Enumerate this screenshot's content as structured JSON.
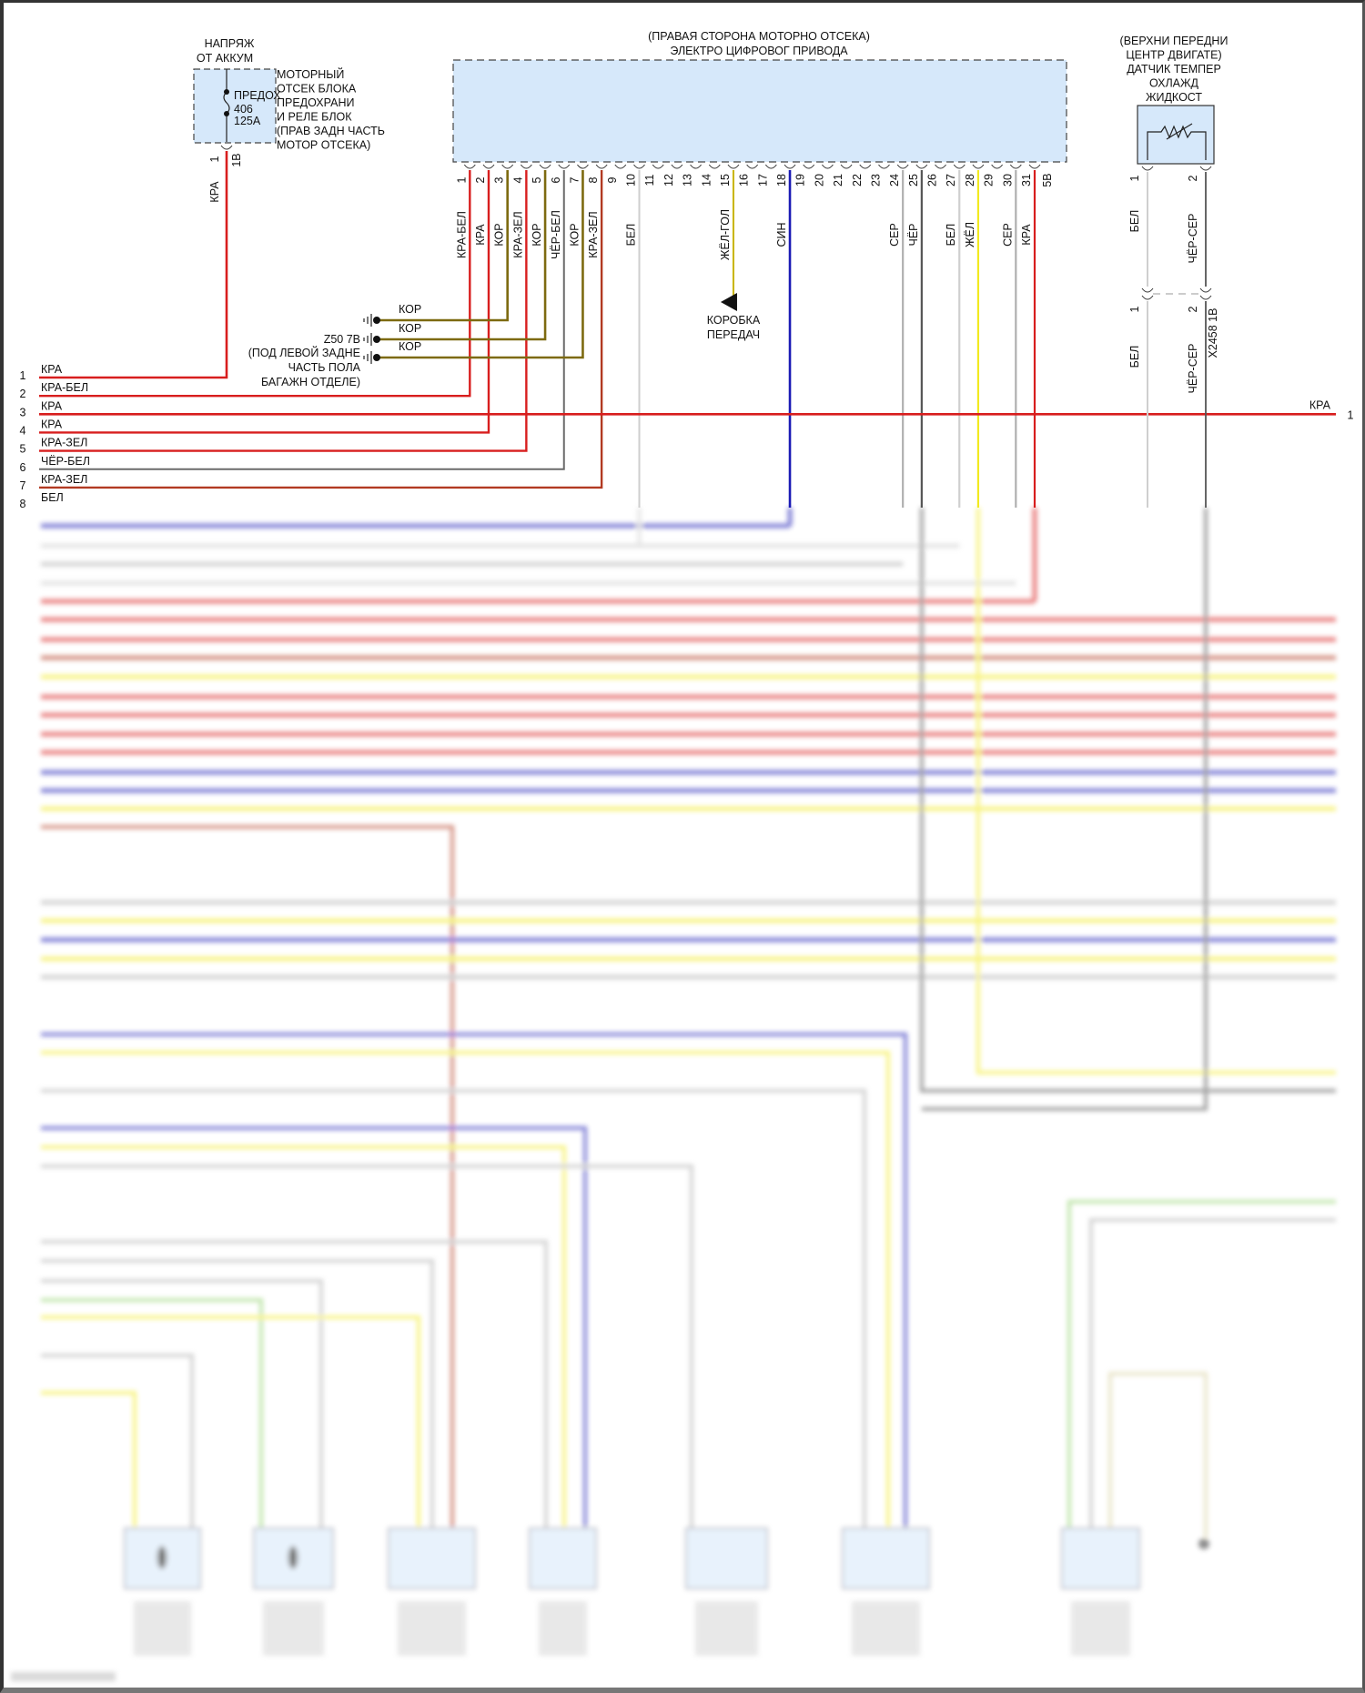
{
  "fuse_block": {
    "supply_label": [
      "НАПРЯЖ",
      "ОТ АККУМ"
    ],
    "fuse_label": [
      "ПРЕДОХ",
      "406",
      "125A"
    ],
    "location": [
      "МОТОРНЫЙ",
      "ОТСЕК БЛОКА",
      "ПРЕДОХРАНИ",
      "И РЕЛЕ БЛОК",
      "(ПРАВ ЗАДН ЧАСТЬ",
      "МОТОР ОТСЕКА)"
    ],
    "pin": "1",
    "connector": "1B",
    "wire_label": "КРА"
  },
  "ecu": {
    "title": [
      "(ПРАВАЯ СТОРОНА МОТОРНО ОТСЕКА)",
      "ЭЛЕКТРО ЦИФРОВОГ ПРИВОДА"
    ],
    "connector": "5B",
    "pins": [
      {
        "n": "1",
        "wire": "КРА-БЕЛ",
        "color": "red"
      },
      {
        "n": "2",
        "wire": "КРА",
        "color": "red"
      },
      {
        "n": "3",
        "wire": "КОР",
        "color": "olive"
      },
      {
        "n": "4",
        "wire": "КРА-ЗЕЛ",
        "color": "red"
      },
      {
        "n": "5",
        "wire": "КОР",
        "color": "olive"
      },
      {
        "n": "6",
        "wire": "ЧЁР-БЕЛ",
        "color": "gray"
      },
      {
        "n": "7",
        "wire": "КОР",
        "color": "olive"
      },
      {
        "n": "8",
        "wire": "КРА-ЗЕЛ",
        "color": "brownred"
      },
      {
        "n": "9",
        "wire": "",
        "color": ""
      },
      {
        "n": "10",
        "wire": "БЕЛ",
        "color": "light"
      },
      {
        "n": "11",
        "wire": "",
        "color": ""
      },
      {
        "n": "12",
        "wire": "",
        "color": ""
      },
      {
        "n": "13",
        "wire": "",
        "color": ""
      },
      {
        "n": "14",
        "wire": "",
        "color": ""
      },
      {
        "n": "15",
        "wire": "ЖЁЛ-ГОЛ",
        "color": "yellowdark"
      },
      {
        "n": "16",
        "wire": "",
        "color": ""
      },
      {
        "n": "17",
        "wire": "",
        "color": ""
      },
      {
        "n": "18",
        "wire": "СИН",
        "color": "blue"
      },
      {
        "n": "19",
        "wire": "",
        "color": ""
      },
      {
        "n": "20",
        "wire": "",
        "color": ""
      },
      {
        "n": "21",
        "wire": "",
        "color": ""
      },
      {
        "n": "22",
        "wire": "",
        "color": ""
      },
      {
        "n": "23",
        "wire": "",
        "color": ""
      },
      {
        "n": "24",
        "wire": "СЕР",
        "color": "grey2"
      },
      {
        "n": "25",
        "wire": "ЧЁР",
        "color": "dark"
      },
      {
        "n": "26",
        "wire": "",
        "color": ""
      },
      {
        "n": "27",
        "wire": "БЕЛ",
        "color": "light"
      },
      {
        "n": "28",
        "wire": "ЖЁЛ",
        "color": "yellow"
      },
      {
        "n": "29",
        "wire": "",
        "color": ""
      },
      {
        "n": "30",
        "wire": "СЕР",
        "color": "grey2"
      },
      {
        "n": "31",
        "wire": "КРА",
        "color": "red"
      }
    ]
  },
  "ground": {
    "id": "Z50 7B",
    "location": [
      "(ПОД ЛЕВОЙ ЗАДНЕ",
      "ЧАСТЬ ПОЛА",
      "БАГАЖН ОТДЕЛЕ)"
    ],
    "wires": [
      "КОР",
      "КОР",
      "КОР"
    ]
  },
  "transmission": {
    "label": [
      "КОРОБКА",
      "ПЕРЕДАЧ"
    ]
  },
  "sensor": {
    "title": [
      "(ВЕРХНИ ПЕРЕДНИ",
      "ЦЕНТР ДВИГАТЕ)",
      "ДАТЧИК ТЕМПЕР",
      "ОХЛАЖД",
      "ЖИДКОСТ"
    ],
    "pins": [
      {
        "n": "1",
        "wire": "БЕЛ"
      },
      {
        "n": "2",
        "wire": "ЧЁР-СЕР"
      }
    ],
    "inline_connector": "X2458 1B"
  },
  "left_rows": [
    {
      "n": "1",
      "wire": "КРА",
      "color": "red"
    },
    {
      "n": "2",
      "wire": "КРА-БЕЛ",
      "color": "red"
    },
    {
      "n": "3",
      "wire": "КРА",
      "color": "red"
    },
    {
      "n": "4",
      "wire": "КРА",
      "color": "red"
    },
    {
      "n": "5",
      "wire": "КРА-ЗЕЛ",
      "color": "red"
    },
    {
      "n": "6",
      "wire": "ЧЁР-БЕЛ",
      "color": "gray"
    },
    {
      "n": "7",
      "wire": "КРА-ЗЕЛ",
      "color": "brownred"
    },
    {
      "n": "8",
      "wire": "БЕЛ",
      "color": "light"
    }
  ],
  "right_rows": [
    {
      "n": "1",
      "wire": "КРА"
    }
  ],
  "wire_colors": {
    "red": "#d81e1e",
    "olive": "#7d6a10",
    "gray": "#6a6a6a",
    "brownred": "#b23a22",
    "light": "#cfcfcf",
    "yellowdark": "#c8b400",
    "yellow": "#f2ea20",
    "blue": "#1b1bb5",
    "grey2": "#b0b0b0",
    "dark": "#555555",
    "green": "#8fd06a",
    "box_fill": "#d6e8fa"
  }
}
